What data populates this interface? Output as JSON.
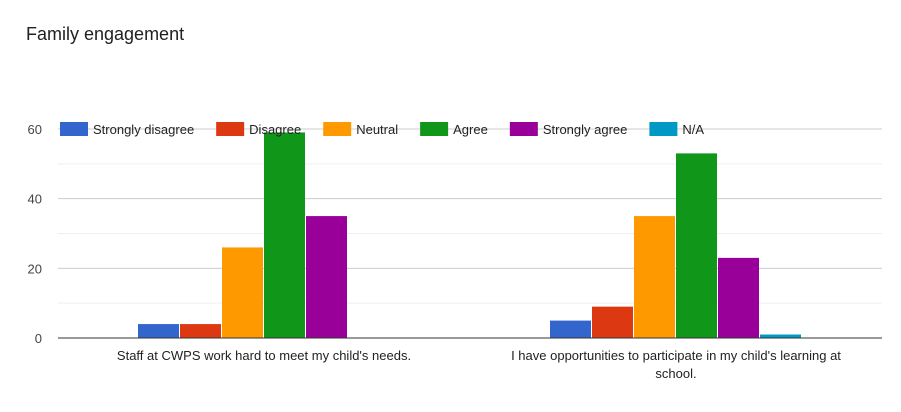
{
  "chart_data": {
    "type": "bar",
    "title": "Family engagement",
    "categories": [
      [
        "Staff at CWPS work hard to meet my child's needs."
      ],
      [
        "I have opportunities to participate in my child's learning at",
        "school."
      ]
    ],
    "series": [
      {
        "name": "Strongly disagree",
        "color": "#3366cc",
        "values": [
          4,
          5
        ]
      },
      {
        "name": "Disagree",
        "color": "#dc3912",
        "values": [
          4,
          9
        ]
      },
      {
        "name": "Neutral",
        "color": "#ff9900",
        "values": [
          26,
          35
        ]
      },
      {
        "name": "Agree",
        "color": "#109618",
        "values": [
          59,
          53
        ]
      },
      {
        "name": "Strongly agree",
        "color": "#990099",
        "values": [
          35,
          23
        ]
      },
      {
        "name": "N/A",
        "color": "#0099c6",
        "values": [
          0,
          1
        ]
      }
    ],
    "ylim": [
      0,
      60
    ],
    "yticks": [
      0,
      20,
      40,
      60
    ],
    "grid": true,
    "legend": "top"
  }
}
